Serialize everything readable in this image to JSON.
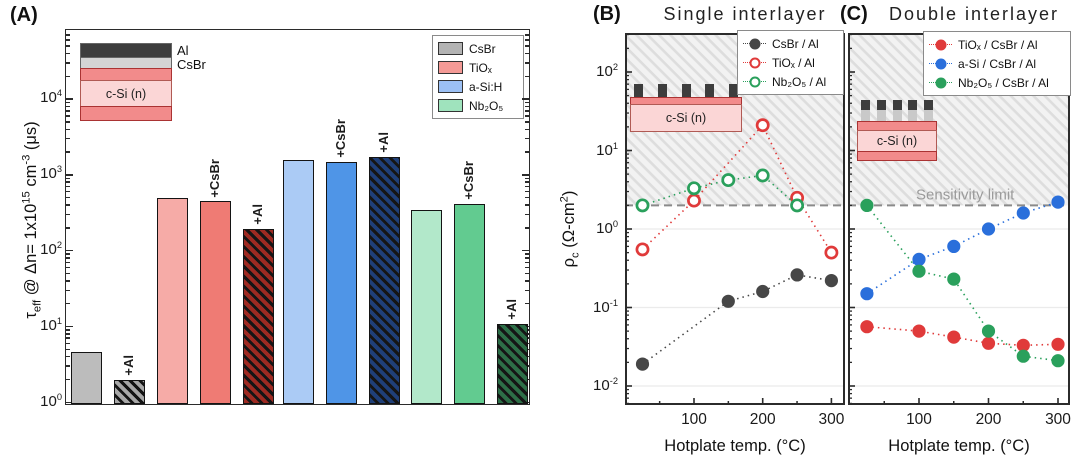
{
  "figure": {
    "panel_a_label": "(A)",
    "panel_b_label": "(B)",
    "panel_c_label": "(C)",
    "panel_b_title": "Single interlayer",
    "panel_c_title": "Double interlayer",
    "x_axis_label": "Hotplate temp. (°C)",
    "sensitivity_label": "Sensitivity limit",
    "y_axis_a": {
      "tau": "τ",
      "tau_sub": "eff",
      "mid": " @ Δn= 1x10",
      "exp": "15",
      "unit_mid": " cm",
      "exp2": "-3",
      "end": " (μs)"
    },
    "y_axis_bc": {
      "rho": "ρ",
      "rho_sub": "c",
      "rest": " (Ω-cm",
      "exp": "2",
      "end": ")"
    }
  },
  "insets": {
    "a": {
      "al_label": "Al",
      "csbr_label": "CsBr",
      "body_label": "c-Si (n)"
    },
    "b": {
      "body_label": "c-Si (n)"
    },
    "c": {
      "body_label": "c-Si (n)"
    }
  },
  "chart_data": [
    {
      "id": "A",
      "type": "bar",
      "title": "",
      "ylabel": "τeff @ Δn= 1x10¹⁵ cm⁻³ (μs)",
      "yscale": "log",
      "ylim": [
        1,
        80000
      ],
      "y_ticks_exponents": [
        0,
        1,
        2,
        3,
        4
      ],
      "legend": [
        {
          "label": "CsBr",
          "color": "#b3b3b3"
        },
        {
          "label": "TiOₓ",
          "color": "#f49a96"
        },
        {
          "label": "a-Si:H",
          "color": "#9cc0f4"
        },
        {
          "label": "Nb₂O₅",
          "color": "#9fe3bd"
        }
      ],
      "groups": [
        {
          "name": "CsBr",
          "light": "#bcbcbc",
          "mid": "#bcbcbc",
          "dark": "#a8a8a8",
          "bars": [
            {
              "label": "",
              "value": 4.7,
              "style": "light"
            },
            {
              "label": "+Al",
              "value": 2.0,
              "style": "hatch"
            }
          ]
        },
        {
          "name": "TiOx",
          "light": "#f6aba7",
          "mid": "#ef7b74",
          "dark": "#9e2a22",
          "bars": [
            {
              "label": "",
              "value": 500,
              "style": "light"
            },
            {
              "label": "+CsBr",
              "value": 450,
              "style": "mid"
            },
            {
              "label": "+Al",
              "value": 195,
              "style": "hatch"
            }
          ]
        },
        {
          "name": "a-Si:H",
          "light": "#abcbf5",
          "mid": "#4f95e7",
          "dark": "#1f3f78",
          "bars": [
            {
              "label": "",
              "value": 1600,
              "style": "light"
            },
            {
              "label": "+CsBr",
              "value": 1500,
              "style": "mid"
            },
            {
              "label": "+Al",
              "value": 1750,
              "style": "hatch"
            }
          ]
        },
        {
          "name": "Nb2O5",
          "light": "#b2e8ca",
          "mid": "#62cb90",
          "dark": "#2d6e47",
          "bars": [
            {
              "label": "",
              "value": 345,
              "style": "light"
            },
            {
              "label": "+CsBr",
              "value": 420,
              "style": "mid"
            },
            {
              "label": "+Al",
              "value": 11,
              "style": "hatch"
            }
          ]
        }
      ]
    },
    {
      "id": "B",
      "type": "scatter",
      "title": "Single interlayer",
      "xlabel": "Hotplate temp. (°C)",
      "ylabel": "ρc (Ω-cm²)",
      "yscale": "log",
      "xlim": [
        0,
        320
      ],
      "y_ticks_exponents": [
        2,
        1,
        0,
        -1,
        -2
      ],
      "x_ticks": [
        100,
        200,
        300
      ],
      "sensitivity_limit": 2,
      "legend_position": "top-right",
      "series": [
        {
          "name": "CsBr / Al",
          "color": "#474747",
          "marker": "filled",
          "x": [
            25,
            150,
            200,
            250,
            300
          ],
          "y": [
            0.019,
            0.12,
            0.16,
            0.26,
            0.22
          ]
        },
        {
          "name": "TiOₓ / Al",
          "color": "#e03a3a",
          "marker": "open",
          "x": [
            25,
            100,
            200,
            250,
            300
          ],
          "y": [
            0.55,
            2.3,
            21,
            2.5,
            0.5
          ]
        },
        {
          "name": "Nb₂O₅ / Al",
          "color": "#2aa05c",
          "marker": "open",
          "x": [
            25,
            100,
            150,
            200,
            250
          ],
          "y": [
            2.0,
            3.3,
            4.2,
            4.8,
            2.0
          ]
        }
      ]
    },
    {
      "id": "C",
      "type": "scatter",
      "title": "Double interlayer",
      "xlabel": "Hotplate temp. (°C)",
      "ylabel": "ρc (Ω-cm²)",
      "yscale": "log",
      "xlim": [
        0,
        320
      ],
      "y_ticks_exponents": [
        2,
        1,
        0,
        -1,
        -2
      ],
      "x_ticks": [
        100,
        200,
        300
      ],
      "sensitivity_limit": 2,
      "legend_position": "top-right",
      "series": [
        {
          "name": "TiOₓ / CsBr / Al",
          "color": "#e03a3a",
          "marker": "filled",
          "x": [
            25,
            100,
            150,
            200,
            250,
            300
          ],
          "y": [
            0.057,
            0.05,
            0.042,
            0.035,
            0.033,
            0.034
          ]
        },
        {
          "name": "a-Si / CsBr / Al",
          "color": "#2a6fdb",
          "marker": "filled",
          "x": [
            25,
            100,
            150,
            200,
            250,
            300
          ],
          "y": [
            0.15,
            0.41,
            0.6,
            1.0,
            1.6,
            2.2
          ]
        },
        {
          "name": "Nb₂O₅ / CsBr / Al",
          "color": "#2aa05c",
          "marker": "filled",
          "x": [
            25,
            100,
            150,
            200,
            250,
            300
          ],
          "y": [
            2.0,
            0.29,
            0.23,
            0.05,
            0.024,
            0.021
          ]
        }
      ]
    }
  ]
}
